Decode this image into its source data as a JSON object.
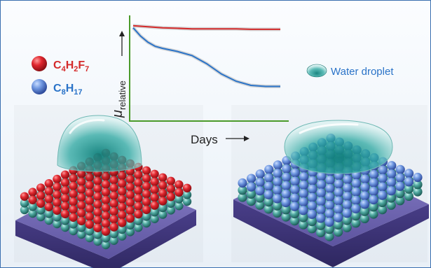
{
  "legend": {
    "fluoro_label": "C4H2F7",
    "alkyl_label": "C8H17",
    "water_label": "Water droplet"
  },
  "axes": {
    "y_label_main": "μ",
    "y_label_sub": "relative",
    "x_label": "Days"
  },
  "chart_data": {
    "type": "line",
    "xlabel": "Days",
    "ylabel": "μ relative",
    "series": [
      {
        "name": "C4H2F7",
        "color": "#d42a2a",
        "x": [
          0,
          0.1,
          0.2,
          0.3,
          0.4,
          0.5,
          0.6,
          0.7,
          0.8,
          0.9,
          1.0
        ],
        "y": [
          0.92,
          0.91,
          0.9,
          0.895,
          0.89,
          0.89,
          0.89,
          0.89,
          0.885,
          0.885,
          0.885
        ]
      },
      {
        "name": "C8H17",
        "color": "#2a73c8",
        "x": [
          0,
          0.05,
          0.1,
          0.15,
          0.2,
          0.3,
          0.4,
          0.5,
          0.6,
          0.7,
          0.8,
          0.9,
          1.0
        ],
        "y": [
          0.9,
          0.82,
          0.76,
          0.72,
          0.7,
          0.67,
          0.63,
          0.55,
          0.45,
          0.38,
          0.34,
          0.33,
          0.33
        ]
      }
    ]
  },
  "colors": {
    "fluoro": "#d42a2a",
    "alkyl": "#2a73c8",
    "water": "#1f9a96",
    "axis": "#4a9a2a",
    "substrate": "#4a3f8a"
  }
}
